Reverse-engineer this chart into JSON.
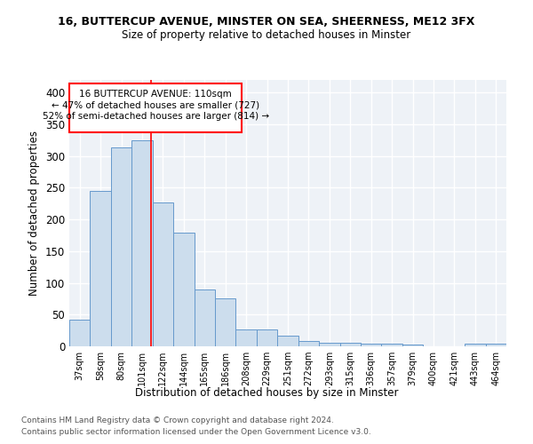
{
  "title1": "16, BUTTERCUP AVENUE, MINSTER ON SEA, SHEERNESS, ME12 3FX",
  "title2": "Size of property relative to detached houses in Minster",
  "xlabel": "Distribution of detached houses by size in Minster",
  "ylabel": "Number of detached properties",
  "categories": [
    "37sqm",
    "58sqm",
    "80sqm",
    "101sqm",
    "122sqm",
    "144sqm",
    "165sqm",
    "186sqm",
    "208sqm",
    "229sqm",
    "251sqm",
    "272sqm",
    "293sqm",
    "315sqm",
    "336sqm",
    "357sqm",
    "379sqm",
    "400sqm",
    "421sqm",
    "443sqm",
    "464sqm"
  ],
  "values": [
    42,
    245,
    313,
    325,
    227,
    179,
    90,
    75,
    26,
    26,
    17,
    8,
    5,
    5,
    4,
    4,
    3,
    0,
    0,
    4,
    4
  ],
  "bar_color": "#ccdded",
  "bar_edge_color": "#6699cc",
  "red_line_x": 3.43,
  "annotation_text1": "16 BUTTERCUP AVENUE: 110sqm",
  "annotation_text2": "← 47% of detached houses are smaller (727)",
  "annotation_text3": "52% of semi-detached houses are larger (814) →",
  "footer1": "Contains HM Land Registry data © Crown copyright and database right 2024.",
  "footer2": "Contains public sector information licensed under the Open Government Licence v3.0.",
  "ylim": [
    0,
    420
  ],
  "bg_color": "#eef2f7"
}
